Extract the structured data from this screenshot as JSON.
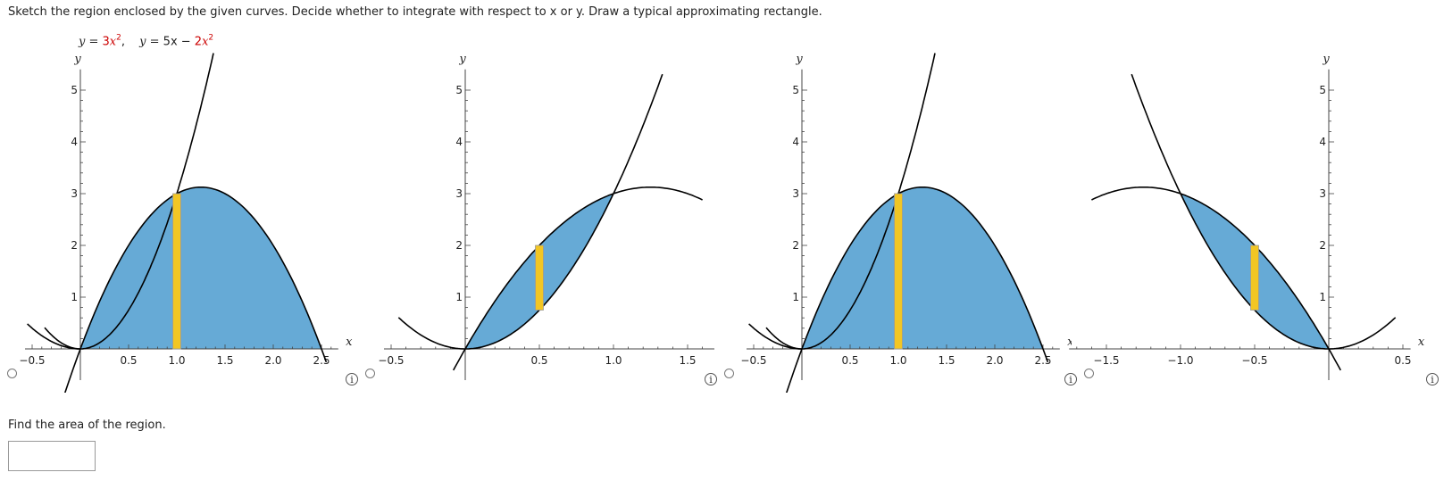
{
  "question": {
    "instructions": "Sketch the region enclosed by the given curves. Decide whether to integrate with respect to x or y. Draw a typical approximating rectangle.",
    "equations": [
      {
        "lhs": "y = ",
        "coef": "3",
        "var": "x",
        "exp": "2",
        "tail": ","
      },
      {
        "lhs": "y = ",
        "pre": "5x − ",
        "coef": "2",
        "var": "x",
        "exp": "2",
        "tail": ""
      }
    ],
    "find_prompt": "Find the area of the region.",
    "answer_value": ""
  },
  "options": [
    {
      "id": "A",
      "x_ticks": [
        "−0.5",
        "0.5",
        "1.0",
        "1.5",
        "2.0",
        "2.5"
      ],
      "y_ticks": [
        "1",
        "2",
        "3",
        "4",
        "5"
      ],
      "x_label": "x",
      "y_label": "y",
      "rectangle_orientation": "vertical"
    },
    {
      "id": "B",
      "x_ticks": [
        "−0.5",
        "0.5",
        "1.0",
        "1.5"
      ],
      "y_ticks": [
        "1",
        "2",
        "3",
        "4",
        "5"
      ],
      "x_label": "x",
      "y_label": "y",
      "rectangle_orientation": "vertical"
    },
    {
      "id": "C",
      "x_ticks": [
        "−0.5",
        "0.5",
        "1.0",
        "1.5",
        "2.0",
        "2.5"
      ],
      "y_ticks": [
        "1",
        "2",
        "3",
        "4",
        "5"
      ],
      "x_label": "x",
      "y_label": "y",
      "rectangle_orientation": "vertical"
    },
    {
      "id": "D",
      "x_ticks": [
        "−1.5",
        "−1.0",
        "−0.5",
        "0.5"
      ],
      "y_ticks": [
        "1",
        "2",
        "3",
        "4",
        "5"
      ],
      "x_label": "x",
      "y_label": "y",
      "rectangle_orientation": "vertical"
    }
  ],
  "colors": {
    "region": "#66aad6",
    "rectangle": "#f2c624",
    "curve": "#000000",
    "equation_highlight": "#cc0000"
  },
  "icons": {
    "info": "info-icon",
    "radio": "radio-button"
  }
}
